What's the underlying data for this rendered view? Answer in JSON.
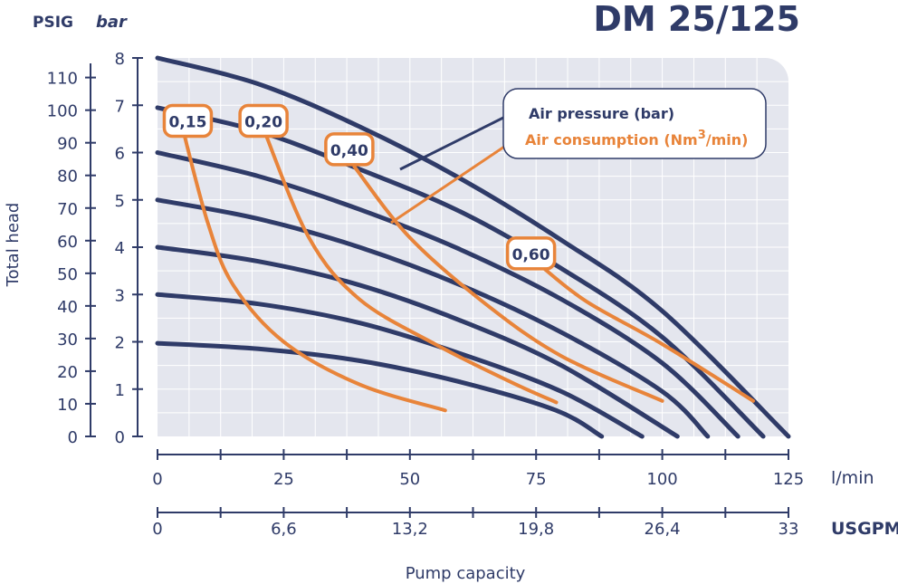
{
  "chart_data": {
    "type": "line",
    "title": "DM 25/125",
    "y_label": "Total head",
    "y_unit_psig": "PSIG",
    "y_unit_bar": "bar",
    "x_label": "Pump capacity",
    "x_unit_lmin": "l/min",
    "x_unit_usgpm": "USGPM",
    "bar_ticks": [
      "0",
      "1",
      "2",
      "3",
      "4",
      "5",
      "6",
      "7",
      "8"
    ],
    "bar_range": [
      0,
      8
    ],
    "psig_ticks": [
      "0",
      "10",
      "20",
      "30",
      "40",
      "50",
      "60",
      "70",
      "80",
      "90",
      "100",
      "110"
    ],
    "psig_per_bar": 14.5,
    "lmin_ticks": [
      "0",
      "25",
      "50",
      "75",
      "100",
      "125"
    ],
    "lmin_range": [
      0,
      125
    ],
    "usgpm_ticks": [
      "0",
      "6,6",
      "13,2",
      "19,8",
      "26,4",
      "33"
    ],
    "usgpm_range": [
      0,
      33
    ],
    "legend": {
      "position": "top-right",
      "air_pressure": "Air pressure (bar)",
      "air_consumption_prefix": "Air consumption (Nm",
      "air_consumption_sup": "3",
      "air_consumption_suffix": "/min)"
    },
    "air_pressure_series": [
      {
        "name": "2 bar",
        "points": [
          [
            0,
            1.97
          ],
          [
            20,
            1.85
          ],
          [
            40,
            1.6
          ],
          [
            60,
            1.15
          ],
          [
            79,
            0.55
          ],
          [
            88,
            0
          ]
        ]
      },
      {
        "name": "3 bar",
        "points": [
          [
            0,
            3.0
          ],
          [
            20,
            2.8
          ],
          [
            40,
            2.4
          ],
          [
            60,
            1.75
          ],
          [
            80,
            0.95
          ],
          [
            96,
            0
          ]
        ]
      },
      {
        "name": "4 bar",
        "points": [
          [
            0,
            4.0
          ],
          [
            20,
            3.7
          ],
          [
            40,
            3.2
          ],
          [
            60,
            2.45
          ],
          [
            80,
            1.5
          ],
          [
            103,
            0
          ]
        ]
      },
      {
        "name": "5 bar",
        "points": [
          [
            0,
            5.0
          ],
          [
            20,
            4.6
          ],
          [
            40,
            4.0
          ],
          [
            60,
            3.2
          ],
          [
            80,
            2.2
          ],
          [
            100,
            0.95
          ],
          [
            109,
            0
          ]
        ]
      },
      {
        "name": "6 bar",
        "points": [
          [
            0,
            6.0
          ],
          [
            20,
            5.5
          ],
          [
            40,
            4.8
          ],
          [
            60,
            3.95
          ],
          [
            80,
            2.9
          ],
          [
            100,
            1.55
          ],
          [
            115,
            0
          ]
        ]
      },
      {
        "name": "7 bar",
        "points": [
          [
            0,
            6.95
          ],
          [
            20,
            6.45
          ],
          [
            40,
            5.65
          ],
          [
            60,
            4.75
          ],
          [
            80,
            3.55
          ],
          [
            100,
            2.1
          ],
          [
            120,
            0
          ]
        ]
      },
      {
        "name": "8 bar",
        "points": [
          [
            0,
            8.0
          ],
          [
            20,
            7.45
          ],
          [
            40,
            6.55
          ],
          [
            60,
            5.45
          ],
          [
            80,
            4.15
          ],
          [
            100,
            2.65
          ],
          [
            125,
            0
          ]
        ]
      }
    ],
    "air_consumption_series": [
      {
        "name": "0,15",
        "label": "0,15",
        "label_at": [
          6,
          6.65
        ],
        "points": [
          [
            5,
            6.5
          ],
          [
            10,
            4.5
          ],
          [
            15,
            3.2
          ],
          [
            25,
            2.0
          ],
          [
            40,
            1.1
          ],
          [
            57,
            0.55
          ]
        ]
      },
      {
        "name": "0,20",
        "label": "0,20",
        "label_at": [
          21,
          6.65
        ],
        "points": [
          [
            21,
            6.5
          ],
          [
            30,
            4.2
          ],
          [
            40,
            2.9
          ],
          [
            55,
            1.95
          ],
          [
            70,
            1.15
          ],
          [
            79,
            0.72
          ]
        ]
      },
      {
        "name": "0,40",
        "label": "0,40",
        "label_at": [
          38,
          6.05
        ],
        "points": [
          [
            39,
            5.7
          ],
          [
            50,
            4.2
          ],
          [
            65,
            2.8
          ],
          [
            80,
            1.7
          ],
          [
            100,
            0.75
          ]
        ]
      },
      {
        "name": "0,60",
        "label": "0,60",
        "label_at": [
          74,
          3.85
        ],
        "points": [
          [
            76,
            3.6
          ],
          [
            85,
            2.85
          ],
          [
            100,
            1.95
          ],
          [
            118,
            0.75
          ]
        ]
      }
    ]
  }
}
